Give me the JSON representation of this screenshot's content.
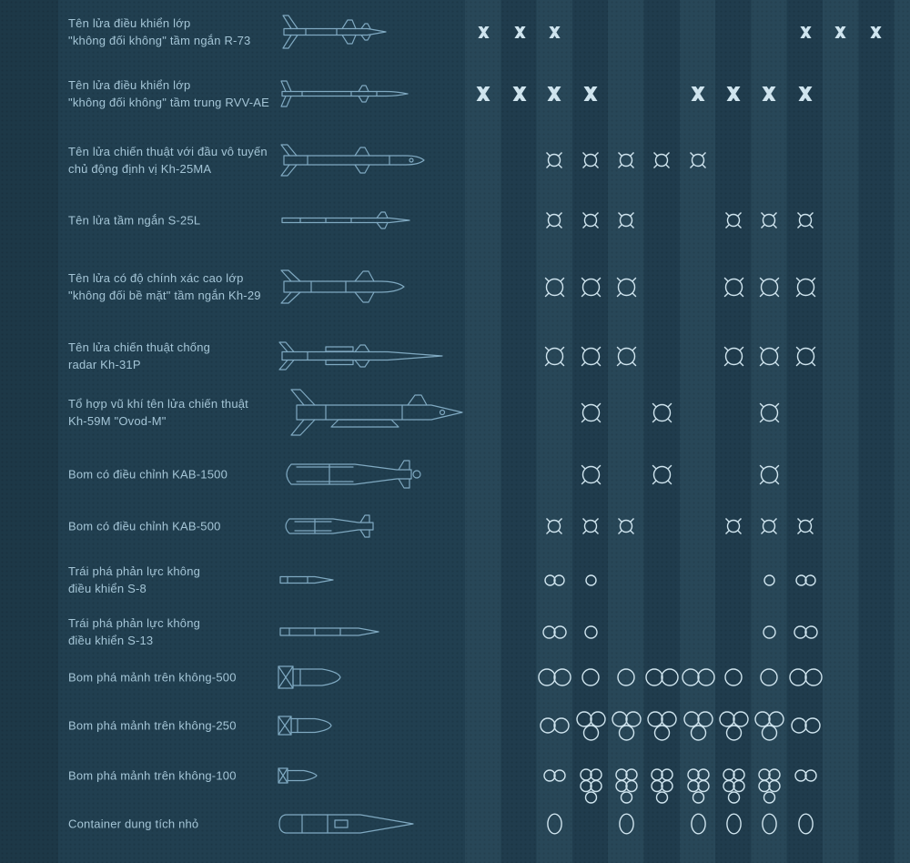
{
  "colors": {
    "background": "#213f50",
    "drawing": "#7fa9c1",
    "marker": "#cfe4ee",
    "text": "#a4c5d6"
  },
  "hardpoints": {
    "columns": 12
  },
  "rows": [
    {
      "label1": "Tên lửa điều khiển lớp",
      "label2": "\"không đối không\" tầm ngắn R-73",
      "weapon": "r73",
      "markers": [
        {
          "col": 0,
          "g": "x",
          "s": 13
        },
        {
          "col": 1,
          "g": "x",
          "s": 13
        },
        {
          "col": 2,
          "g": "x",
          "s": 13
        },
        {
          "col": 9,
          "g": "x",
          "s": 13
        },
        {
          "col": 10,
          "g": "x",
          "s": 13
        },
        {
          "col": 11,
          "g": "x",
          "s": 13
        }
      ]
    },
    {
      "label1": "Tên lửa điều khiển lớp",
      "label2": "\"không đối không\" tầm trung RVV-AE",
      "weapon": "rvv",
      "markers": [
        {
          "col": 0,
          "g": "x",
          "s": 16
        },
        {
          "col": 1,
          "g": "x",
          "s": 16
        },
        {
          "col": 2,
          "g": "x",
          "s": 16
        },
        {
          "col": 3,
          "g": "x",
          "s": 16
        },
        {
          "col": 6,
          "g": "x",
          "s": 16
        },
        {
          "col": 7,
          "g": "x",
          "s": 16
        },
        {
          "col": 8,
          "g": "x",
          "s": 16
        },
        {
          "col": 9,
          "g": "x",
          "s": 16
        }
      ]
    },
    {
      "label1": "Tên lửa chiến thuật với đầu vô tuyến",
      "label2": "chủ động định vị  Kh-25MA",
      "weapon": "kh25",
      "markers": [
        {
          "col": 2,
          "g": "ring-sm"
        },
        {
          "col": 3,
          "g": "ring-sm"
        },
        {
          "col": 4,
          "g": "ring-sm"
        },
        {
          "col": 5,
          "g": "ring-sm"
        },
        {
          "col": 6,
          "g": "ring-sm"
        }
      ]
    },
    {
      "label1": "Tên lửa tầm ngắn S-25L",
      "label2": "",
      "weapon": "s25",
      "markers": [
        {
          "col": 2,
          "g": "ring-sm"
        },
        {
          "col": 3,
          "g": "ring-sm"
        },
        {
          "col": 4,
          "g": "ring-sm"
        },
        {
          "col": 7,
          "g": "ring-sm"
        },
        {
          "col": 8,
          "g": "ring-sm"
        },
        {
          "col": 9,
          "g": "ring-sm"
        }
      ]
    },
    {
      "label1": "Tên lửa có độ chính xác cao lớp",
      "label2": "\"không đối bề mặt\" tầm ngắn Kh-29",
      "weapon": "kh29",
      "markers": [
        {
          "col": 2,
          "g": "ring-lg"
        },
        {
          "col": 3,
          "g": "ring-lg"
        },
        {
          "col": 4,
          "g": "ring-lg"
        },
        {
          "col": 7,
          "g": "ring-lg"
        },
        {
          "col": 8,
          "g": "ring-lg"
        },
        {
          "col": 9,
          "g": "ring-lg"
        }
      ]
    },
    {
      "label1": "Tên lửa chiến thuật chống",
      "label2": "radar Kh-31P",
      "weapon": "kh31",
      "markers": [
        {
          "col": 2,
          "g": "ring-lg"
        },
        {
          "col": 3,
          "g": "ring-lg"
        },
        {
          "col": 4,
          "g": "ring-lg"
        },
        {
          "col": 7,
          "g": "ring-lg"
        },
        {
          "col": 8,
          "g": "ring-lg"
        },
        {
          "col": 9,
          "g": "ring-lg"
        }
      ]
    },
    {
      "label1": "Tổ hợp vũ khí tên lửa chiến thuật",
      "label2": "Kh-59M \"Ovod-M\"",
      "weapon": "kh59",
      "markers": [
        {
          "col": 3,
          "g": "ring-lg"
        },
        {
          "col": 5,
          "g": "ring-lg"
        },
        {
          "col": 8,
          "g": "ring-lg"
        }
      ]
    },
    {
      "label1": "Bom có điều chỉnh KAB-1500",
      "label2": "",
      "weapon": "kab1500",
      "markers": [
        {
          "col": 3,
          "g": "ring-lg"
        },
        {
          "col": 5,
          "g": "ring-lg"
        },
        {
          "col": 8,
          "g": "ring-lg"
        }
      ]
    },
    {
      "label1": "Bom có điều chỉnh KAB-500",
      "label2": "",
      "weapon": "kab500",
      "markers": [
        {
          "col": 2,
          "g": "ring-sm"
        },
        {
          "col": 3,
          "g": "ring-sm"
        },
        {
          "col": 4,
          "g": "ring-sm"
        },
        {
          "col": 7,
          "g": "ring-sm"
        },
        {
          "col": 8,
          "g": "ring-sm"
        },
        {
          "col": 9,
          "g": "ring-sm"
        }
      ]
    },
    {
      "label1": "Trái phá phản lực không",
      "label2": "điều khiển  S-8",
      "weapon": "s8",
      "markers": [
        {
          "col": 2,
          "g": "pair",
          "s": 11
        },
        {
          "col": 3,
          "g": "one",
          "s": 11
        },
        {
          "col": 8,
          "g": "one",
          "s": 11
        },
        {
          "col": 9,
          "g": "pair",
          "s": 11
        }
      ]
    },
    {
      "label1": "Trái phá phản lực không",
      "label2": "điều khiển  S-13",
      "weapon": "s13",
      "markers": [
        {
          "col": 2,
          "g": "pair",
          "s": 13
        },
        {
          "col": 3,
          "g": "one",
          "s": 13
        },
        {
          "col": 8,
          "g": "one",
          "s": 13
        },
        {
          "col": 9,
          "g": "pair",
          "s": 13
        }
      ]
    },
    {
      "label1": "Bom phá mảnh trên không-500",
      "label2": "",
      "weapon": "fab500",
      "markers": [
        {
          "col": 2,
          "g": "pair",
          "s": 18
        },
        {
          "col": 3,
          "g": "one",
          "s": 18
        },
        {
          "col": 4,
          "g": "one",
          "s": 18
        },
        {
          "col": 5,
          "g": "pair",
          "s": 18
        },
        {
          "col": 6,
          "g": "pair",
          "s": 18
        },
        {
          "col": 7,
          "g": "one",
          "s": 18
        },
        {
          "col": 8,
          "g": "one",
          "s": 18
        },
        {
          "col": 9,
          "g": "pair",
          "s": 18
        }
      ]
    },
    {
      "label1": "Bom phá mảnh trên không-250",
      "label2": "",
      "weapon": "fab250",
      "markers": [
        {
          "col": 2,
          "g": "pair",
          "s": 16
        },
        {
          "col": 3,
          "g": "tri",
          "s": 16
        },
        {
          "col": 4,
          "g": "tri",
          "s": 16
        },
        {
          "col": 5,
          "g": "tri",
          "s": 16
        },
        {
          "col": 6,
          "g": "tri",
          "s": 16
        },
        {
          "col": 7,
          "g": "tri",
          "s": 16
        },
        {
          "col": 8,
          "g": "tri",
          "s": 16
        },
        {
          "col": 9,
          "g": "pair",
          "s": 16
        }
      ]
    },
    {
      "label1": "Bom phá mảnh trên không-100",
      "label2": "",
      "weapon": "fab100",
      "markers": [
        {
          "col": 2,
          "g": "pair",
          "s": 12
        },
        {
          "col": 3,
          "g": "stack",
          "s": 12
        },
        {
          "col": 4,
          "g": "stack",
          "s": 12
        },
        {
          "col": 5,
          "g": "stack",
          "s": 12
        },
        {
          "col": 6,
          "g": "stack",
          "s": 12
        },
        {
          "col": 7,
          "g": "stack",
          "s": 12
        },
        {
          "col": 8,
          "g": "stack",
          "s": 12
        },
        {
          "col": 9,
          "g": "pair",
          "s": 12
        }
      ]
    },
    {
      "label1": "Container dung tích nhỏ",
      "label2": "",
      "weapon": "kmgu",
      "markers": [
        {
          "col": 2,
          "g": "oval"
        },
        {
          "col": 4,
          "g": "oval"
        },
        {
          "col": 6,
          "g": "oval"
        },
        {
          "col": 7,
          "g": "oval"
        },
        {
          "col": 8,
          "g": "oval"
        },
        {
          "col": 9,
          "g": "oval"
        }
      ]
    }
  ]
}
